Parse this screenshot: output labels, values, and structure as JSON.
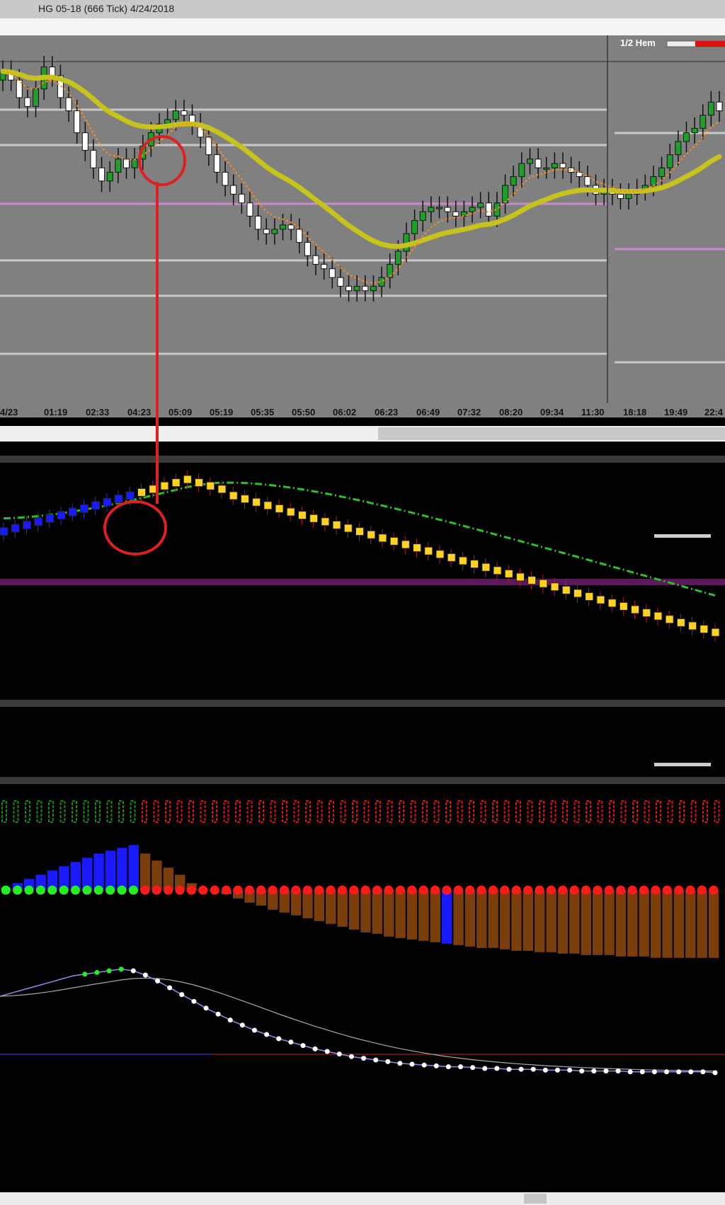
{
  "window": {
    "title": "HG 05-18 (666 Tick)  4/24/2018"
  },
  "price_panel": {
    "label": "1/2 Hem"
  },
  "colors": {
    "background": "#808080",
    "slow_ma": "#c7c31d",
    "fast_ma": "#ff8a1a",
    "annotation": "#e02020",
    "bull_candle": "#1f9e2a",
    "bear_candle": "#ffffff",
    "indicator_up": "#1a1aff",
    "indicator_down": "#ffd21f",
    "hist_pos": "#1a1aff",
    "hist_neg": "#7a3d0c",
    "dot_green": "#22ee22",
    "dot_red": "#ff1a1a"
  },
  "chart_data": [
    {
      "type": "candlestick",
      "title": "HG 05-18 (666 Tick)  4/24/2018",
      "x_tick_labels": [
        "4/23",
        "01:19",
        "02:33",
        "04:23",
        "05:09",
        "05:19",
        "05:35",
        "05:50",
        "06:02",
        "06:23",
        "06:49",
        "07:32",
        "08:20",
        "09:34",
        "11:30",
        "18:18",
        "19:49",
        "22:4"
      ],
      "grid": true,
      "closes": [
        66,
        64,
        60,
        58,
        62,
        67,
        65,
        60,
        57,
        52,
        48,
        44,
        41,
        43,
        46,
        44,
        46,
        49,
        52,
        54,
        55,
        57,
        56,
        54,
        51,
        47,
        43,
        40,
        38,
        36,
        33,
        30,
        29,
        30,
        31,
        30,
        27,
        24,
        22,
        21,
        19,
        17,
        16,
        17,
        16,
        17,
        19,
        22,
        25,
        29,
        32,
        34,
        35,
        35,
        34,
        33,
        34,
        35,
        36,
        33,
        36,
        40,
        42,
        45,
        46,
        44,
        44,
        45,
        44,
        43,
        42,
        40,
        38,
        39,
        38,
        37,
        38,
        39,
        40,
        42,
        44,
        47,
        50,
        52,
        53,
        56,
        59,
        57
      ]
    },
    {
      "type": "scatter",
      "name": "momentum_oscillator",
      "values": [
        14,
        15,
        16,
        17,
        18,
        19,
        20,
        21,
        22,
        23,
        24,
        25,
        26,
        27,
        28,
        29,
        30,
        29,
        28,
        27,
        25,
        24,
        23,
        22,
        21,
        20,
        19,
        18,
        17,
        16,
        15,
        14,
        13,
        12,
        11,
        10,
        9,
        8,
        7,
        6,
        5,
        4,
        3,
        2,
        1,
        0,
        -1,
        -2,
        -3,
        -4,
        -5,
        -6,
        -7,
        -8,
        -9,
        -10,
        -11,
        -12,
        -13,
        -14,
        -15,
        -16,
        -17
      ],
      "turn_index": 11
    },
    {
      "type": "bar",
      "name": "histogram",
      "values": [
        2,
        5,
        8,
        11,
        14,
        17,
        20,
        23,
        26,
        28,
        30,
        32,
        26,
        21,
        16,
        11,
        5,
        1,
        -1,
        -3,
        -6,
        -9,
        -11,
        -14,
        -16,
        -18,
        -20,
        -22,
        -24,
        -26,
        -28,
        -30,
        -31,
        -33,
        -34,
        -35,
        -36,
        -37,
        -38,
        -39,
        -40,
        -41,
        -41,
        -42,
        -43,
        -43,
        -44,
        -44,
        -45,
        -45,
        -46,
        -46,
        -46,
        -47,
        -47,
        -47,
        -48,
        -48,
        -48,
        -48,
        -48,
        -48
      ],
      "blue_bar_index": 38
    },
    {
      "type": "line",
      "name": "oscillator_line",
      "values": [
        10,
        14,
        18,
        22,
        26,
        30,
        34,
        36,
        38,
        40,
        42,
        40,
        35,
        28,
        20,
        12,
        4,
        -4,
        -11,
        -18,
        -24,
        -30,
        -35,
        -40,
        -44,
        -48,
        -52,
        -55,
        -58,
        -61,
        -63,
        -65,
        -67,
        -69,
        -70,
        -71,
        -72,
        -73,
        -73,
        -74,
        -75,
        -75,
        -76,
        -76,
        -76,
        -77,
        -77,
        -77,
        -78,
        -78,
        -78,
        -78,
        -79,
        -79,
        -79,
        -79,
        -79,
        -79,
        -79,
        -80
      ]
    }
  ]
}
